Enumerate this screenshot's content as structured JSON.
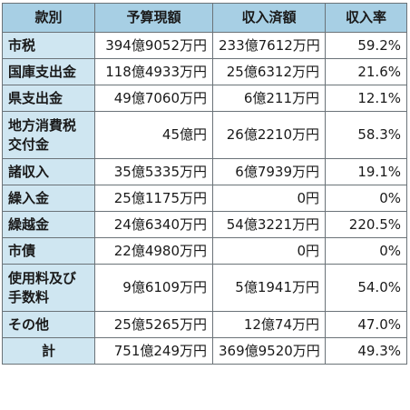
{
  "headers": [
    "款別",
    "予算現額",
    "収入済額",
    "収入率"
  ],
  "rows": [
    {
      "name": "市税",
      "budget": "394億9052万円",
      "received": "233億7612万円",
      "rate": "59.2%"
    },
    {
      "name": "国庫支出金",
      "budget": "118億4933万円",
      "received": "25億6312万円",
      "rate": "21.6%"
    },
    {
      "name": "県支出金",
      "budget": "49億7060万円",
      "received": "6億211万円",
      "rate": "12.1%"
    },
    {
      "name_lines": [
        "地方消費税",
        "交付金"
      ],
      "budget": "45億円",
      "received": "26億2210万円",
      "rate": "58.3%"
    },
    {
      "name": "諸収入",
      "budget": "35億5335万円",
      "received": "6億7939万円",
      "rate": "19.1%"
    },
    {
      "name": "繰入金",
      "budget": "25億1175万円",
      "received": "0円",
      "rate": "0%"
    },
    {
      "name": "繰越金",
      "budget": "24億6340万円",
      "received": "54億3221万円",
      "rate": "220.5%"
    },
    {
      "name": "市債",
      "budget": "22億4980万円",
      "received": "0円",
      "rate": "0%"
    },
    {
      "name_lines": [
        "使用料及び",
        "手数料"
      ],
      "budget": "9億6109万円",
      "received": "5億1941万円",
      "rate": "54.0%"
    },
    {
      "name": "その他",
      "budget": "25億5265万円",
      "received": "12億74万円",
      "rate": "47.0%"
    }
  ],
  "total": {
    "name": "計",
    "budget": "751億249万円",
    "received": "369億9520万円",
    "rate": "49.3%"
  }
}
